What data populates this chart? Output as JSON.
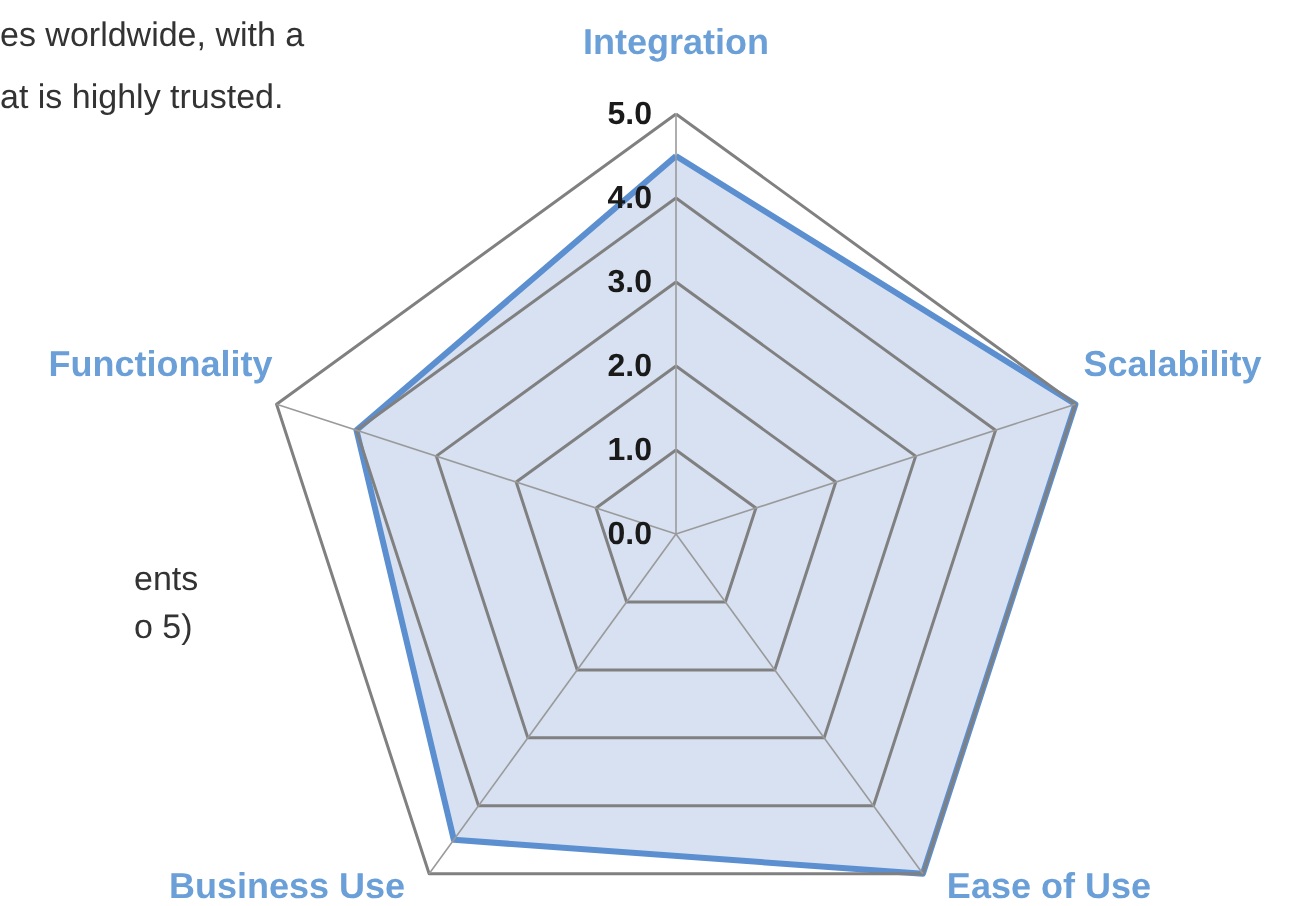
{
  "chart_data": {
    "type": "radar",
    "categories": [
      "Integration",
      "Scalability",
      "Ease of Use",
      "Business Use",
      "Functionality"
    ],
    "series": [
      {
        "color": "#5b8fd0",
        "values": [
          4.5,
          5.0,
          5.0,
          4.5,
          4.0
        ]
      }
    ],
    "ylim": [
      0,
      5
    ],
    "yticks": [
      {
        "value": 0,
        "label": "0.0"
      },
      {
        "value": 1,
        "label": "1.0"
      },
      {
        "value": 2,
        "label": "2.0"
      },
      {
        "value": 3,
        "label": "3.0"
      },
      {
        "value": 4,
        "label": "4.0"
      },
      {
        "value": 5,
        "label": "5.0"
      }
    ],
    "grid": true,
    "annotations": [
      "es worldwide, with a",
      "at is highly trusted.",
      "ents",
      "o 5)"
    ]
  }
}
